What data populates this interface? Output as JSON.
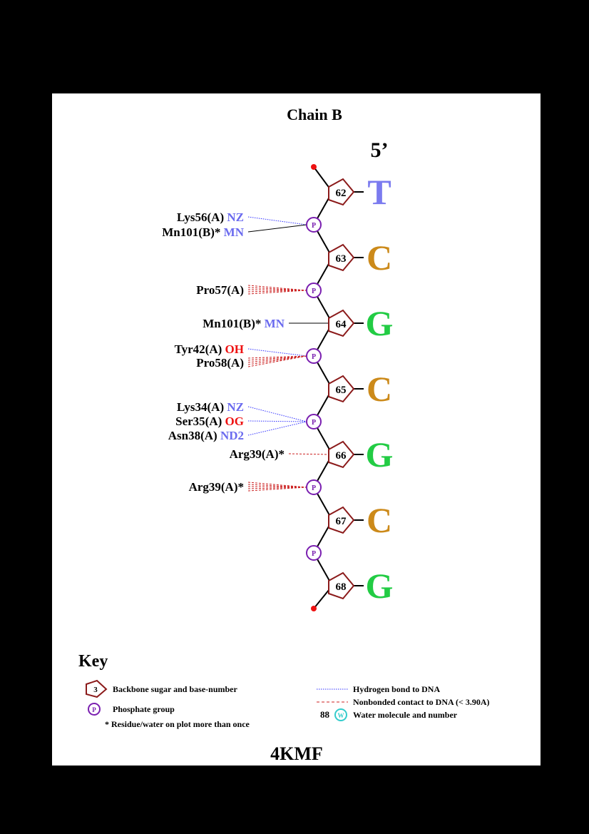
{
  "title": "Chain B",
  "end_label": "5’",
  "pdb_id": "4KMF",
  "colors": {
    "sugar": "#8b1a1a",
    "phosphate": "#7a1fb0",
    "hbond": "#3333ff",
    "nonbonded": "#cc2222",
    "terminal": "#ee1111",
    "atom_blue": "#6b6bef",
    "atom_red": "#ee1111",
    "base_T": "#7b7bef",
    "base_C": "#cc8a1a",
    "base_G": "#22cc44",
    "water": "#33cccc"
  },
  "nucleotides": [
    {
      "number": "62",
      "base": "T"
    },
    {
      "number": "63",
      "base": "C"
    },
    {
      "number": "64",
      "base": "G"
    },
    {
      "number": "65",
      "base": "C"
    },
    {
      "number": "66",
      "base": "G"
    },
    {
      "number": "67",
      "base": "C"
    },
    {
      "number": "68",
      "base": "G"
    }
  ],
  "phosphate_label": "P",
  "interactions": [
    {
      "residue": "Lys56(A)",
      "atom": "NZ",
      "atom_color": "blue",
      "type": "hbond",
      "target": "P62-63"
    },
    {
      "residue": "Mn101(B)*",
      "atom": "MN",
      "atom_color": "blue",
      "type": "solid",
      "target": "P62-63"
    },
    {
      "residue": "Pro57(A)",
      "atom": "",
      "atom_color": "",
      "type": "nonbonded",
      "target": "P63-64"
    },
    {
      "residue": "Mn101(B)*",
      "atom": "MN",
      "atom_color": "blue",
      "type": "solid",
      "target": "S64"
    },
    {
      "residue": "Tyr42(A)",
      "atom": "OH",
      "atom_color": "red",
      "type": "hbond",
      "target": "P64-65"
    },
    {
      "residue": "Pro58(A)",
      "atom": "",
      "atom_color": "",
      "type": "nonbonded",
      "target": "P64-65"
    },
    {
      "residue": "Lys34(A)",
      "atom": "NZ",
      "atom_color": "blue",
      "type": "hbond",
      "target": "P65-66"
    },
    {
      "residue": "Ser35(A)",
      "atom": "OG",
      "atom_color": "red",
      "type": "hbond",
      "target": "P65-66"
    },
    {
      "residue": "Asn38(A)",
      "atom": "ND2",
      "atom_color": "blue",
      "type": "hbond",
      "target": "P65-66"
    },
    {
      "residue": "Arg39(A)*",
      "atom": "",
      "atom_color": "",
      "type": "nonbonded",
      "target": "S66"
    },
    {
      "residue": "Arg39(A)*",
      "atom": "",
      "atom_color": "",
      "type": "nonbonded",
      "target": "P66-67"
    }
  ],
  "key": {
    "heading": "Key",
    "sugar_example_number": "3",
    "sugar_text": "Backbone sugar and base-number",
    "phosphate_text": "Phosphate group",
    "asterisk_text": "* Residue/water on plot more than once",
    "hbond_text": "Hydrogen bond to DNA",
    "nonbonded_text": "Nonbonded contact to DNA (< 3.90A)",
    "water_number": "88",
    "water_symbol": "W",
    "water_text": "Water molecule and number"
  }
}
